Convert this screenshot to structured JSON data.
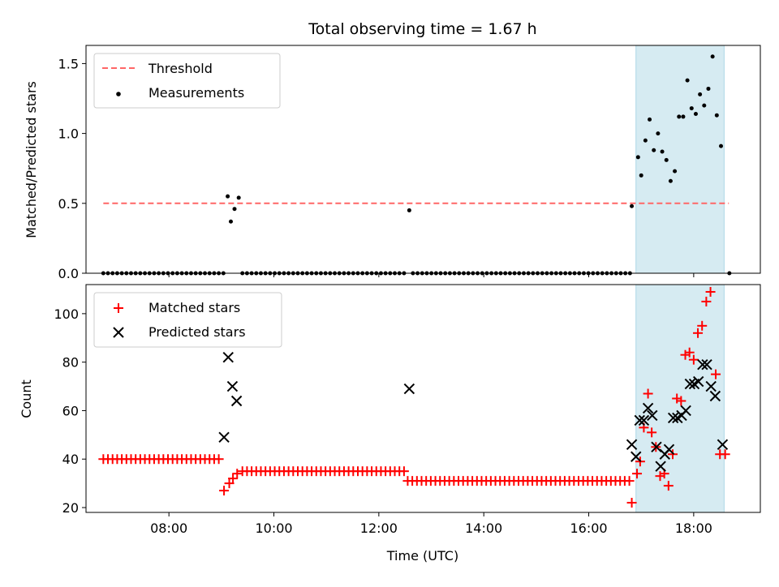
{
  "chart_data": {
    "title": "Total observing time = 1.67 h",
    "xlabel": "Time (UTC)",
    "x_tick_labels": [
      "08:00",
      "10:00",
      "12:00",
      "14:00",
      "16:00",
      "18:00"
    ],
    "x_tick_values_hours": [
      8,
      10,
      12,
      14,
      16,
      18
    ],
    "xlim_hours": [
      6.42,
      19.27
    ],
    "highlight_span_hours": [
      16.9,
      18.58
    ],
    "highlight_color": "#add8e6",
    "panels": [
      {
        "type": "scatter",
        "ylabel": "Matched/Predicted stars",
        "ylim": [
          0,
          1.63
        ],
        "y_ticks": [
          "0.0",
          "0.5",
          "1.0",
          "1.5"
        ],
        "y_tick_values": [
          0,
          0.5,
          1.0,
          1.5
        ],
        "legend_position": "top-left",
        "threshold": {
          "name": "Threshold",
          "value": 0.5,
          "x_range": [
            6.75,
            18.67
          ],
          "color": "#ff6666"
        },
        "measurements": {
          "name": "Measurements",
          "color": "#000000",
          "zero_runs": [
            {
              "start": 6.75,
              "end": 9.05,
              "step": 0.088
            },
            {
              "start": 9.4,
              "end": 12.52,
              "step": 0.088
            },
            {
              "start": 12.65,
              "end": 16.8,
              "step": 0.088
            }
          ],
          "points": [
            [
              9.12,
              0.55
            ],
            [
              9.18,
              0.37
            ],
            [
              9.25,
              0.46
            ],
            [
              9.33,
              0.54
            ],
            [
              12.58,
              0.45
            ],
            [
              16.82,
              0.48
            ],
            [
              16.94,
              0.83
            ],
            [
              17.0,
              0.7
            ],
            [
              17.08,
              0.95
            ],
            [
              17.16,
              1.1
            ],
            [
              17.24,
              0.88
            ],
            [
              17.32,
              1.0
            ],
            [
              17.4,
              0.87
            ],
            [
              17.48,
              0.81
            ],
            [
              17.56,
              0.66
            ],
            [
              17.64,
              0.73
            ],
            [
              17.72,
              1.12
            ],
            [
              17.8,
              1.12
            ],
            [
              17.88,
              1.38
            ],
            [
              17.96,
              1.18
            ],
            [
              18.04,
              1.14
            ],
            [
              18.12,
              1.28
            ],
            [
              18.2,
              1.2
            ],
            [
              18.28,
              1.32
            ],
            [
              18.36,
              1.55
            ],
            [
              18.44,
              1.13
            ],
            [
              18.52,
              0.91
            ],
            [
              18.68,
              0.0
            ]
          ]
        }
      },
      {
        "type": "scatter",
        "ylabel": "Count",
        "ylim": [
          18,
          112
        ],
        "y_ticks": [
          "20",
          "40",
          "60",
          "80",
          "100"
        ],
        "y_tick_values": [
          20,
          40,
          60,
          80,
          100
        ],
        "legend_position": "top-left",
        "matched": {
          "name": "Matched stars",
          "color": "#ff0000",
          "runs": [
            {
              "start": 6.75,
              "end": 8.95,
              "step": 0.088,
              "value": 40
            },
            {
              "start": 9.4,
              "end": 12.52,
              "step": 0.088,
              "value": 35
            },
            {
              "start": 12.55,
              "end": 16.8,
              "step": 0.088,
              "value": 31
            }
          ],
          "points": [
            [
              9.05,
              27
            ],
            [
              9.15,
              30
            ],
            [
              9.22,
              32
            ],
            [
              9.3,
              34
            ],
            [
              16.82,
              22
            ],
            [
              16.92,
              34
            ],
            [
              16.98,
              39
            ],
            [
              17.05,
              53
            ],
            [
              17.13,
              67
            ],
            [
              17.2,
              51
            ],
            [
              17.28,
              45
            ],
            [
              17.36,
              33
            ],
            [
              17.44,
              34
            ],
            [
              17.52,
              29
            ],
            [
              17.6,
              42
            ],
            [
              17.68,
              65
            ],
            [
              17.76,
              64
            ],
            [
              17.84,
              83
            ],
            [
              17.92,
              84
            ],
            [
              18.0,
              81
            ],
            [
              18.08,
              92
            ],
            [
              18.16,
              95
            ],
            [
              18.24,
              105
            ],
            [
              18.32,
              109
            ],
            [
              18.42,
              75
            ],
            [
              18.5,
              42
            ],
            [
              18.6,
              42
            ]
          ]
        },
        "predicted": {
          "name": "Predicted stars",
          "color": "#000000",
          "points": [
            [
              9.05,
              49
            ],
            [
              9.13,
              82
            ],
            [
              9.21,
              70
            ],
            [
              9.29,
              64
            ],
            [
              12.58,
              69
            ],
            [
              16.82,
              46
            ],
            [
              16.9,
              41
            ],
            [
              16.97,
              56
            ],
            [
              17.05,
              56
            ],
            [
              17.13,
              61
            ],
            [
              17.21,
              58
            ],
            [
              17.29,
              45
            ],
            [
              17.37,
              37
            ],
            [
              17.45,
              42
            ],
            [
              17.53,
              44
            ],
            [
              17.61,
              57
            ],
            [
              17.69,
              57
            ],
            [
              17.77,
              58
            ],
            [
              17.85,
              60
            ],
            [
              17.93,
              71
            ],
            [
              18.01,
              71
            ],
            [
              18.09,
              72
            ],
            [
              18.17,
              79
            ],
            [
              18.25,
              79
            ],
            [
              18.33,
              70
            ],
            [
              18.41,
              66
            ],
            [
              18.55,
              46
            ]
          ]
        }
      }
    ]
  }
}
